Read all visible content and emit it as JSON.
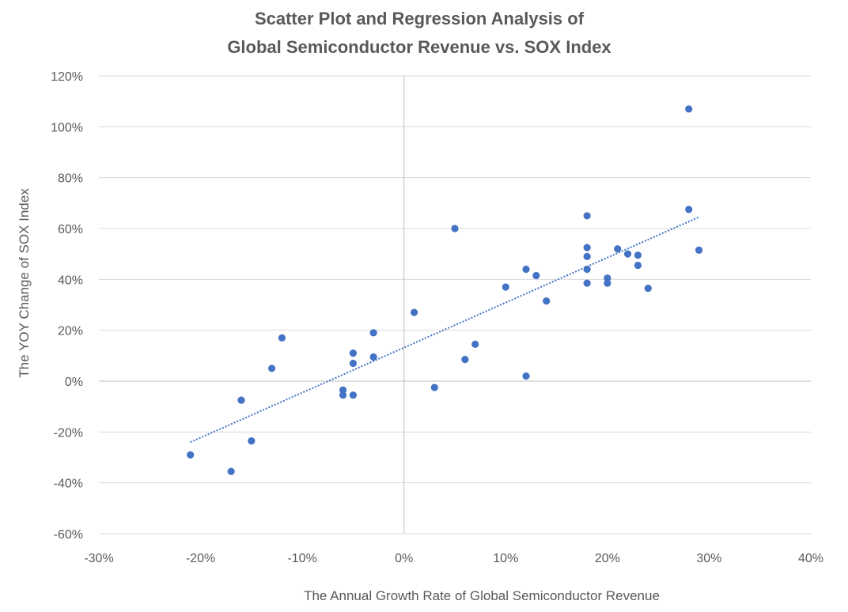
{
  "chart_data": {
    "type": "scatter",
    "title_lines": [
      "Scatter Plot and Regression Analysis of",
      "Global Semiconductor Revenue vs. SOX Index"
    ],
    "xlabel": "The Annual Growth Rate of Global Semiconductor Revenue",
    "ylabel": "The YOY Change of SOX Index",
    "xlim": [
      -30,
      40
    ],
    "ylim": [
      -60,
      120
    ],
    "x_ticks": [
      -30,
      -20,
      -10,
      0,
      10,
      20,
      30,
      40
    ],
    "y_ticks": [
      -60,
      -40,
      -20,
      0,
      20,
      40,
      60,
      80,
      100,
      120
    ],
    "x_tick_labels": [
      "-30%",
      "-20%",
      "-10%",
      "0%",
      "10%",
      "20%",
      "30%",
      "40%"
    ],
    "y_tick_labels": [
      "-60%",
      "-40%",
      "-20%",
      "0%",
      "20%",
      "40%",
      "60%",
      "80%",
      "100%",
      "120%"
    ],
    "grid": "horizontal",
    "legend": "none",
    "colors": {
      "points": "#4472c4",
      "trendline": "#4472c4"
    },
    "trendline": {
      "type": "linear",
      "x": [
        -21,
        29
      ],
      "y": [
        -24,
        64.5
      ]
    },
    "points": [
      {
        "x": -21,
        "y": -29
      },
      {
        "x": -17,
        "y": -35.5
      },
      {
        "x": -16,
        "y": -7.5
      },
      {
        "x": -15,
        "y": -23.5
      },
      {
        "x": -13,
        "y": 5
      },
      {
        "x": -12,
        "y": 17
      },
      {
        "x": -6,
        "y": -3.5
      },
      {
        "x": -6,
        "y": -5.5
      },
      {
        "x": -5,
        "y": -5.5
      },
      {
        "x": -5,
        "y": 7
      },
      {
        "x": -5,
        "y": 11
      },
      {
        "x": -3,
        "y": 9.5
      },
      {
        "x": -3,
        "y": 19
      },
      {
        "x": 1,
        "y": 27
      },
      {
        "x": 3,
        "y": -2.5
      },
      {
        "x": 5,
        "y": 60
      },
      {
        "x": 6,
        "y": 8.5
      },
      {
        "x": 7,
        "y": 14.5
      },
      {
        "x": 10,
        "y": 37
      },
      {
        "x": 12,
        "y": 44
      },
      {
        "x": 12,
        "y": 2
      },
      {
        "x": 13,
        "y": 41.5
      },
      {
        "x": 14,
        "y": 31.5
      },
      {
        "x": 18,
        "y": 65
      },
      {
        "x": 18,
        "y": 52.5
      },
      {
        "x": 18,
        "y": 49
      },
      {
        "x": 18,
        "y": 44
      },
      {
        "x": 18,
        "y": 38.5
      },
      {
        "x": 20,
        "y": 40.5
      },
      {
        "x": 20,
        "y": 38.5
      },
      {
        "x": 21,
        "y": 52
      },
      {
        "x": 22,
        "y": 50
      },
      {
        "x": 23,
        "y": 49.5
      },
      {
        "x": 23,
        "y": 45.5
      },
      {
        "x": 24,
        "y": 36.5
      },
      {
        "x": 28,
        "y": 107
      },
      {
        "x": 28,
        "y": 67.5
      },
      {
        "x": 29,
        "y": 51.5
      }
    ]
  }
}
